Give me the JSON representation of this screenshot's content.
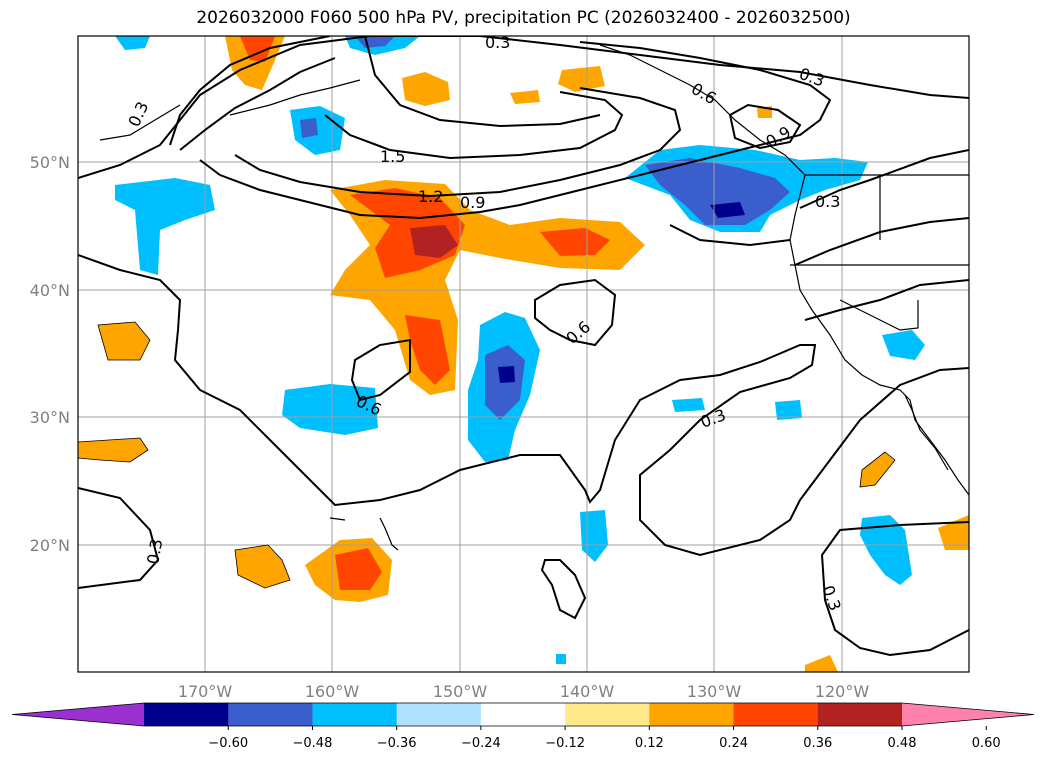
{
  "title": "2026032000 F060 500 hPa PV, precipitation PC (2026032400 - 2026032500)",
  "map": {
    "projection": "PlateCarree",
    "lon_range": [
      -180,
      -110
    ],
    "lat_range": [
      10,
      60
    ],
    "lat_ticks": [
      "50°N",
      "40°N",
      "30°N",
      "20°N"
    ],
    "lon_ticks": [
      "170°W",
      "160°W",
      "150°W",
      "140°W",
      "130°W",
      "120°W"
    ],
    "grid": true
  },
  "pv_contour_labels": [
    "0.3",
    "0.3",
    "0.3",
    "0.3",
    "0.3",
    "0.3",
    "0.3",
    "0.6",
    "0.6",
    "0.6",
    "0.9",
    "0.9",
    "1.2",
    "1.5"
  ],
  "colorbar": {
    "tick_labels": [
      "−0.60",
      "−0.48",
      "−0.36",
      "−0.24",
      "−0.12",
      "0.12",
      "0.24",
      "0.36",
      "0.48",
      "0.60"
    ],
    "colors": [
      "#9b30d0",
      "#00008b",
      "#3a5fcd",
      "#00bfff",
      "#b0e2ff",
      "#ffffff",
      "#ffe98a",
      "#ffa500",
      "#ff4500",
      "#b22222",
      "#ff82ab"
    ],
    "extend": "both"
  }
}
